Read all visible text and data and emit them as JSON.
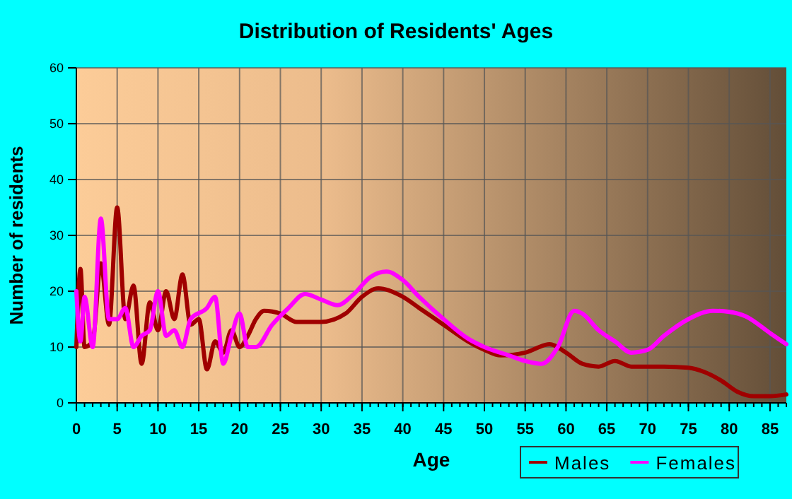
{
  "chart_data": {
    "type": "line",
    "title": "Distribution of Residents' Ages",
    "xlabel": "Age",
    "ylabel": "Number of residents",
    "xlim": [
      0,
      87
    ],
    "xticks": [
      0,
      5,
      10,
      15,
      20,
      25,
      30,
      35,
      40,
      45,
      50,
      55,
      60,
      65,
      70,
      75,
      80,
      85
    ],
    "ylim": [
      0,
      60
    ],
    "yticks": [
      0,
      10,
      20,
      30,
      40,
      50,
      60
    ],
    "grid": true,
    "legend": "bottom right",
    "series": [
      {
        "name": "Males",
        "color": "#a00000",
        "x": [
          0,
          0.5,
          1,
          2,
          3,
          4,
          5,
          6,
          7,
          8,
          9,
          10,
          11,
          12,
          13,
          14,
          15,
          16,
          17,
          18,
          19,
          20,
          21,
          22,
          23,
          25,
          27,
          30,
          33,
          35,
          37,
          40,
          42,
          45,
          48,
          50,
          52,
          55,
          58,
          60,
          62,
          64,
          66,
          68,
          72,
          75,
          77,
          79,
          81,
          83,
          85,
          87
        ],
        "values": [
          10,
          24,
          10,
          11,
          25,
          14,
          35,
          15,
          21,
          7,
          18,
          13,
          20,
          15,
          23,
          14,
          15,
          6,
          11,
          9,
          13,
          10,
          12,
          15,
          16.5,
          16,
          14.5,
          14.5,
          16,
          19,
          20.5,
          19,
          17,
          14,
          11,
          9.5,
          8.5,
          9,
          10.5,
          9,
          7,
          6.5,
          7.5,
          6.5,
          6.5,
          6.3,
          5.5,
          4,
          2,
          1.2,
          1.2,
          1.5
        ]
      },
      {
        "name": "Females",
        "color": "#ff00ff",
        "x": [
          0,
          0.5,
          1,
          2,
          3,
          4,
          5,
          6,
          7,
          8,
          9,
          10,
          11,
          12,
          13,
          14,
          16,
          17,
          18,
          19,
          20,
          21,
          22,
          24,
          26,
          28,
          30,
          32,
          34,
          36,
          38,
          40,
          42,
          45,
          48,
          50,
          53,
          55,
          57,
          59,
          61,
          62,
          64,
          66,
          68,
          70,
          72,
          75,
          78,
          80,
          82,
          85,
          87
        ],
        "values": [
          20,
          11,
          19,
          10,
          33,
          15,
          15,
          17,
          10,
          12,
          13,
          20,
          12,
          13,
          10,
          15,
          17,
          19,
          7,
          12,
          16,
          10,
          10,
          14,
          17,
          19.5,
          18.5,
          17.5,
          19.5,
          22.5,
          23.5,
          22,
          19,
          15,
          11.5,
          10,
          8.5,
          7.5,
          7,
          10,
          16.5,
          16,
          13,
          11,
          9,
          9.5,
          12,
          15,
          16.5,
          16.3,
          15.5,
          12.5,
          10.5
        ]
      }
    ]
  }
}
